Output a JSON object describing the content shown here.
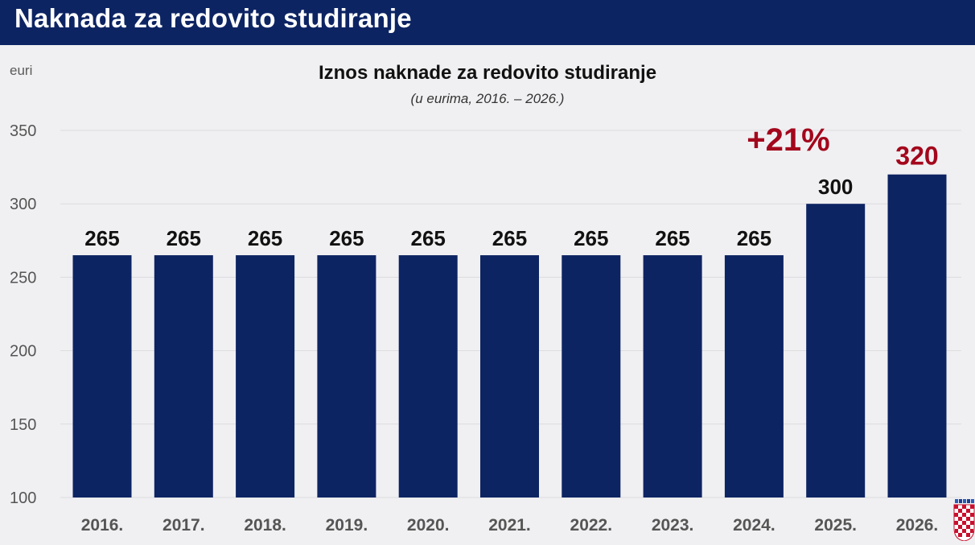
{
  "header": {
    "title": "Naknada za redovito studiranje"
  },
  "colors": {
    "header_bg": "#0d2463",
    "bar": "#0d2463",
    "highlight": "#a3071c",
    "background": "#f0f0f2"
  },
  "chart_data": {
    "type": "bar",
    "title": "Iznos naknade za redovito studiranje",
    "subtitle": "(u eurima, 2016. – 2026.)",
    "ylabel": "euri",
    "xlabel": "",
    "ylim": [
      100,
      350
    ],
    "yticks": [
      "100",
      "150",
      "200",
      "250",
      "300",
      "350"
    ],
    "grid": true,
    "categories": [
      "2016.",
      "2017.",
      "2018.",
      "2019.",
      "2020.",
      "2021.",
      "2022.",
      "2023.",
      "2024.",
      "2025.",
      "2026."
    ],
    "values": [
      265,
      265,
      265,
      265,
      265,
      265,
      265,
      265,
      265,
      300,
      320
    ],
    "value_labels": [
      "265",
      "265",
      "265",
      "265",
      "265",
      "265",
      "265",
      "265",
      "265",
      "300",
      "320"
    ],
    "highlight_index": 10,
    "annotation": "+21%"
  },
  "icons": {
    "corner": "croatian-coat-of-arms-icon"
  }
}
